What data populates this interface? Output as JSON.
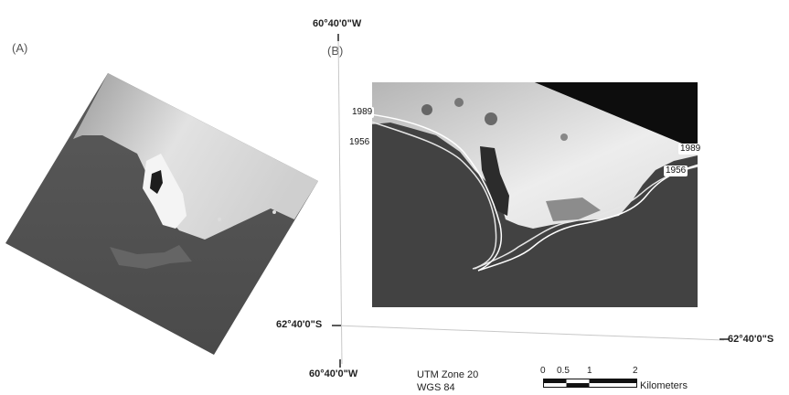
{
  "panels": {
    "a_label": "(A)",
    "b_label": "(B)"
  },
  "coordinates": {
    "top_lon": "60°40'0\"W",
    "bottom_lon": "60°40'0\"W",
    "left_lat": "62°40'0\"S",
    "right_lat": "62°40'0\"S"
  },
  "shoreline_labels": {
    "left_1989": "1989",
    "left_1956": "1956",
    "right_1989": "1989",
    "right_1956": "1956"
  },
  "projection": {
    "line1": "UTM Zone 20",
    "line2": "WGS 84"
  },
  "scale_bar": {
    "ticks": [
      "0",
      "0.5",
      "1",
      "2"
    ],
    "unit": "Kilometers"
  },
  "colors": {
    "sea": "#3e3e3e",
    "ice": "#e6e6e6",
    "no_data": "#0d0d0d",
    "shoreline": "#f2f2f2"
  }
}
